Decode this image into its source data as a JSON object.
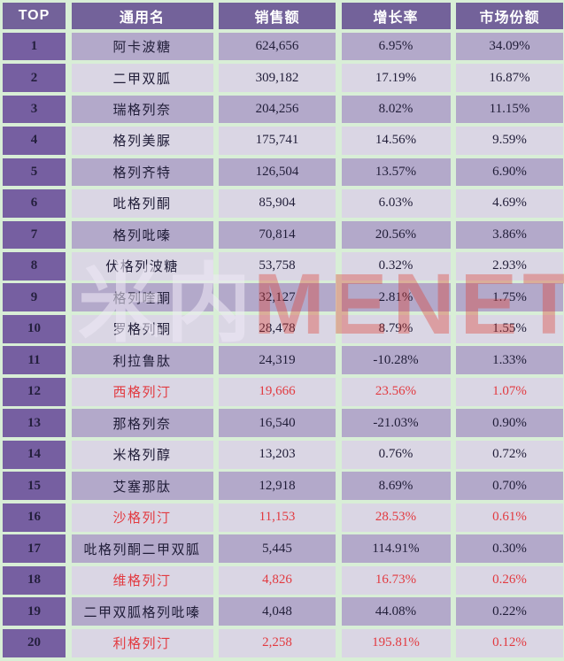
{
  "watermark": {
    "cn": "米内",
    "en": "MENET"
  },
  "colors": {
    "page_background": "#d8eed6",
    "header_background": "#73629a",
    "header_text": "#ffffff",
    "rank_column_background": "#765fa1",
    "row_odd_background": "#b3a9ca",
    "row_even_background": "#dad6e4",
    "text_dark": "#201d38",
    "highlight_red": "#e23a40"
  },
  "table": {
    "headers": [
      "TOP",
      "通用名",
      "销售额",
      "增长率",
      "市场份额"
    ],
    "rows": [
      {
        "rank": "1",
        "name": "阿卡波糖",
        "sales": "624,656",
        "growth": "6.95%",
        "share": "34.09%",
        "highlight": false
      },
      {
        "rank": "2",
        "name": "二甲双胍",
        "sales": "309,182",
        "growth": "17.19%",
        "share": "16.87%",
        "highlight": false
      },
      {
        "rank": "3",
        "name": "瑞格列奈",
        "sales": "204,256",
        "growth": "8.02%",
        "share": "11.15%",
        "highlight": false
      },
      {
        "rank": "4",
        "name": "格列美脲",
        "sales": "175,741",
        "growth": "14.56%",
        "share": "9.59%",
        "highlight": false
      },
      {
        "rank": "5",
        "name": "格列齐特",
        "sales": "126,504",
        "growth": "13.57%",
        "share": "6.90%",
        "highlight": false
      },
      {
        "rank": "6",
        "name": "吡格列酮",
        "sales": "85,904",
        "growth": "6.03%",
        "share": "4.69%",
        "highlight": false
      },
      {
        "rank": "7",
        "name": "格列吡嗪",
        "sales": "70,814",
        "growth": "20.56%",
        "share": "3.86%",
        "highlight": false
      },
      {
        "rank": "8",
        "name": "伏格列波糖",
        "sales": "53,758",
        "growth": "0.32%",
        "share": "2.93%",
        "highlight": false
      },
      {
        "rank": "9",
        "name": "格列喹酮",
        "sales": "32,127",
        "growth": "2.81%",
        "share": "1.75%",
        "highlight": false
      },
      {
        "rank": "10",
        "name": "罗格列酮",
        "sales": "28,478",
        "growth": "8.79%",
        "share": "1.55%",
        "highlight": false
      },
      {
        "rank": "11",
        "name": "利拉鲁肽",
        "sales": "24,319",
        "growth": "-10.28%",
        "share": "1.33%",
        "highlight": false
      },
      {
        "rank": "12",
        "name": "西格列汀",
        "sales": "19,666",
        "growth": "23.56%",
        "share": "1.07%",
        "highlight": true
      },
      {
        "rank": "13",
        "name": "那格列奈",
        "sales": "16,540",
        "growth": "-21.03%",
        "share": "0.90%",
        "highlight": false
      },
      {
        "rank": "14",
        "name": "米格列醇",
        "sales": "13,203",
        "growth": "0.76%",
        "share": "0.72%",
        "highlight": false
      },
      {
        "rank": "15",
        "name": "艾塞那肽",
        "sales": "12,918",
        "growth": "8.69%",
        "share": "0.70%",
        "highlight": false
      },
      {
        "rank": "16",
        "name": "沙格列汀",
        "sales": "11,153",
        "growth": "28.53%",
        "share": "0.61%",
        "highlight": true
      },
      {
        "rank": "17",
        "name": "吡格列酮二甲双胍",
        "sales": "5,445",
        "growth": "114.91%",
        "share": "0.30%",
        "highlight": false
      },
      {
        "rank": "18",
        "name": "维格列汀",
        "sales": "4,826",
        "growth": "16.73%",
        "share": "0.26%",
        "highlight": true
      },
      {
        "rank": "19",
        "name": "二甲双胍格列吡嗪",
        "sales": "4,048",
        "growth": "44.08%",
        "share": "0.22%",
        "highlight": false
      },
      {
        "rank": "20",
        "name": "利格列汀",
        "sales": "2,258",
        "growth": "195.81%",
        "share": "0.12%",
        "highlight": true
      }
    ]
  },
  "chart_data": {
    "type": "table",
    "title": "",
    "columns": [
      "TOP",
      "通用名",
      "销售额",
      "增长率",
      "市场份额"
    ],
    "rows": [
      [
        1,
        "阿卡波糖",
        "624,656",
        "6.95%",
        "34.09%"
      ],
      [
        2,
        "二甲双胍",
        "309,182",
        "17.19%",
        "16.87%"
      ],
      [
        3,
        "瑞格列奈",
        "204,256",
        "8.02%",
        "11.15%"
      ],
      [
        4,
        "格列美脲",
        "175,741",
        "14.56%",
        "9.59%"
      ],
      [
        5,
        "格列齐特",
        "126,504",
        "13.57%",
        "6.90%"
      ],
      [
        6,
        "吡格列酮",
        "85,904",
        "6.03%",
        "4.69%"
      ],
      [
        7,
        "格列吡嗪",
        "70,814",
        "20.56%",
        "3.86%"
      ],
      [
        8,
        "伏格列波糖",
        "53,758",
        "0.32%",
        "2.93%"
      ],
      [
        9,
        "格列喹酮",
        "32,127",
        "2.81%",
        "1.75%"
      ],
      [
        10,
        "罗格列酮",
        "28,478",
        "8.79%",
        "1.55%"
      ],
      [
        11,
        "利拉鲁肽",
        "24,319",
        "-10.28%",
        "1.33%"
      ],
      [
        12,
        "西格列汀",
        "19,666",
        "23.56%",
        "1.07%"
      ],
      [
        13,
        "那格列奈",
        "16,540",
        "-21.03%",
        "0.90%"
      ],
      [
        14,
        "米格列醇",
        "13,203",
        "0.76%",
        "0.72%"
      ],
      [
        15,
        "艾塞那肽",
        "12,918",
        "8.69%",
        "0.70%"
      ],
      [
        16,
        "沙格列汀",
        "11,153",
        "28.53%",
        "0.61%"
      ],
      [
        17,
        "吡格列酮二甲双胍",
        "5,445",
        "114.91%",
        "0.30%"
      ],
      [
        18,
        "维格列汀",
        "4,826",
        "16.73%",
        "0.26%"
      ],
      [
        19,
        "二甲双胍格列吡嗪",
        "4,048",
        "44.08%",
        "0.22%"
      ],
      [
        20,
        "利格列汀",
        "2,258",
        "195.81%",
        "0.12%"
      ]
    ],
    "highlighted_row_ranks": [
      12,
      16,
      18,
      20
    ],
    "highlight_color": "#e23a40"
  }
}
